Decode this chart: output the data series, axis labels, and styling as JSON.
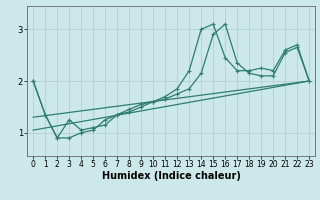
{
  "xlabel": "Humidex (Indice chaleur)",
  "line_color": "#2e7d6e",
  "bg_color": "#cce8ea",
  "grid_color": "#aacccc",
  "xlim": [
    -0.5,
    23.5
  ],
  "ylim": [
    0.55,
    3.45
  ],
  "yticks": [
    1,
    2,
    3
  ],
  "xticks": [
    0,
    1,
    2,
    3,
    4,
    5,
    6,
    7,
    8,
    9,
    10,
    11,
    12,
    13,
    14,
    15,
    16,
    17,
    18,
    19,
    20,
    21,
    22,
    23
  ],
  "lines": [
    {
      "x": [
        0,
        1,
        2,
        3,
        4,
        5,
        6,
        7,
        8,
        9,
        10,
        11,
        12,
        13,
        14,
        15,
        16,
        17,
        18,
        19,
        20,
        21,
        22,
        23
      ],
      "y": [
        2.0,
        1.35,
        0.9,
        0.9,
        1.0,
        1.05,
        1.25,
        1.35,
        1.4,
        1.5,
        1.6,
        1.65,
        1.75,
        1.85,
        2.15,
        2.9,
        3.1,
        2.35,
        2.15,
        2.1,
        2.1,
        2.55,
        2.65,
        2.0
      ],
      "marker": true
    },
    {
      "x": [
        0,
        1,
        2,
        3,
        4,
        5,
        6,
        7,
        8,
        9,
        10,
        11,
        12,
        13,
        14,
        15,
        16,
        17,
        18,
        19,
        20,
        21,
        22,
        23
      ],
      "y": [
        2.0,
        1.35,
        0.9,
        1.25,
        1.05,
        1.1,
        1.15,
        1.35,
        1.45,
        1.55,
        1.6,
        1.7,
        1.85,
        2.2,
        3.0,
        3.1,
        2.45,
        2.2,
        2.2,
        2.25,
        2.2,
        2.6,
        2.7,
        2.0
      ],
      "marker": true
    },
    {
      "x": [
        0,
        23
      ],
      "y": [
        1.05,
        2.0
      ],
      "marker": false
    },
    {
      "x": [
        0,
        23
      ],
      "y": [
        1.3,
        2.0
      ],
      "marker": false
    }
  ],
  "markersize": 3.5,
  "linewidth": 0.9,
  "xlabel_fontsize": 7,
  "tick_fontsize": 5.5
}
